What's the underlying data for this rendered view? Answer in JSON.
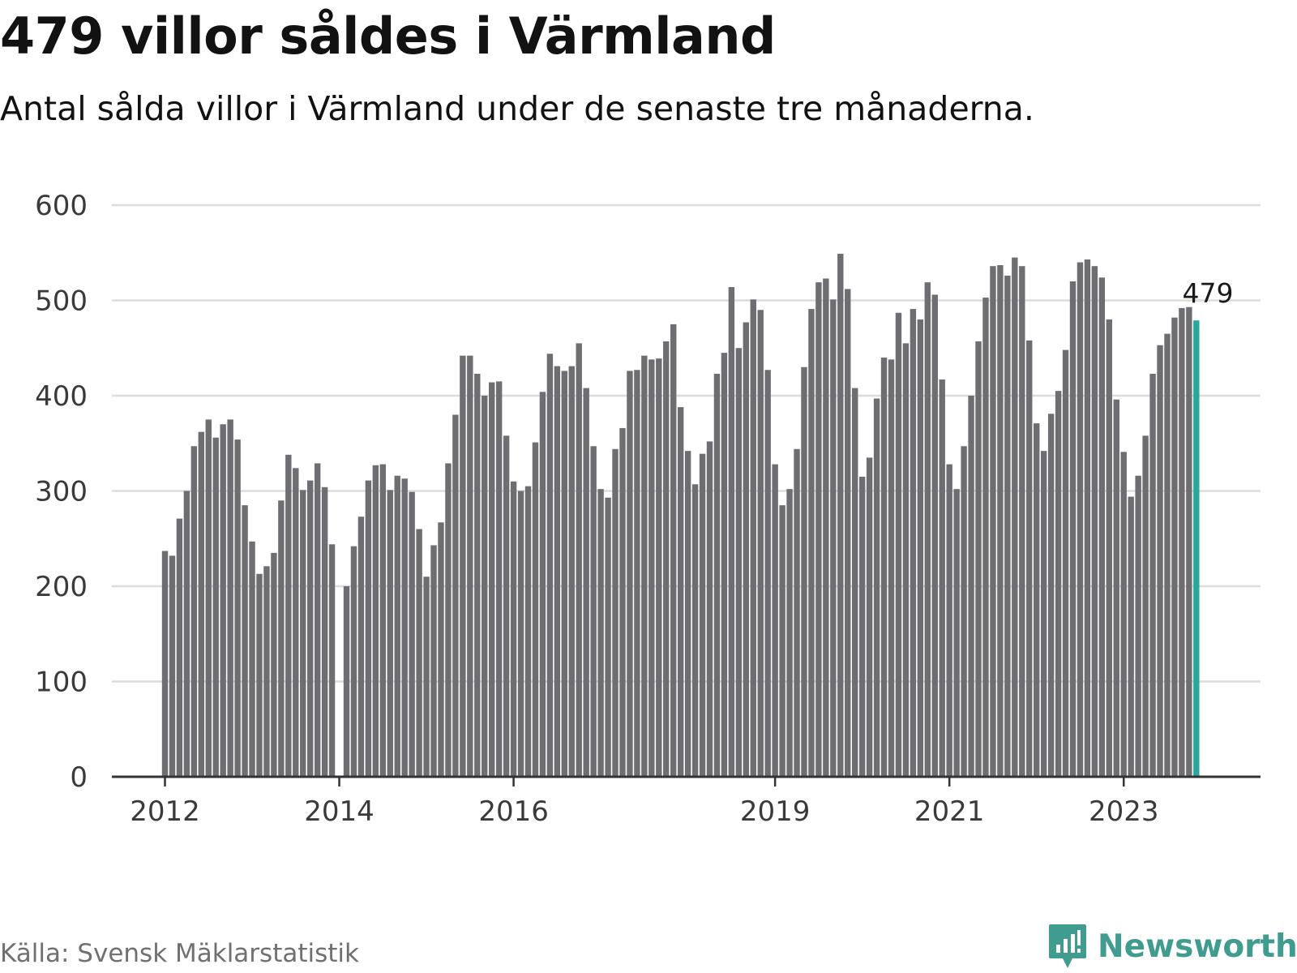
{
  "header": {
    "title": "479 villor såldes i Värmland",
    "subtitle": "Antal sålda villor i Värmland under de senaste tre månaderna."
  },
  "footer": {
    "source": "Källa: Svensk Mäklarstatistik",
    "brand": "Newsworthy",
    "brand_icon": "newsworthy-logo-icon"
  },
  "colors": {
    "bar": "#6e6d72",
    "highlight": "#2aa69a",
    "grid": "#dcdcdc",
    "axis": "#333333",
    "brand": "#3f9c8e"
  },
  "chart_data": {
    "type": "bar",
    "title": "479 villor såldes i Värmland",
    "subtitle": "Antal sålda villor i Värmland under de senaste tre månaderna.",
    "xlabel": "",
    "ylabel": "",
    "ylim": [
      0,
      600
    ],
    "yticks": [
      "0",
      "100",
      "200",
      "300",
      "400",
      "500",
      "600"
    ],
    "grid": true,
    "start_month": "2012-01",
    "xtick_labels": [
      {
        "label": "2012",
        "month": "2012-01"
      },
      {
        "label": "2014",
        "month": "2014-01"
      },
      {
        "label": "2016",
        "month": "2016-01"
      },
      {
        "label": "2019",
        "month": "2019-01"
      },
      {
        "label": "2021",
        "month": "2021-01"
      },
      {
        "label": "2023",
        "month": "2023-01"
      }
    ],
    "values": [
      237,
      232,
      271,
      300,
      347,
      362,
      375,
      356,
      370,
      375,
      354,
      285,
      247,
      213,
      221,
      235,
      290,
      338,
      324,
      301,
      311,
      329,
      304,
      244,
      null,
      200,
      242,
      273,
      311,
      327,
      328,
      301,
      316,
      313,
      299,
      260,
      210,
      243,
      267,
      329,
      380,
      442,
      442,
      423,
      400,
      414,
      415,
      358,
      310,
      300,
      305,
      351,
      404,
      444,
      431,
      426,
      431,
      455,
      408,
      347,
      302,
      293,
      344,
      366,
      426,
      427,
      442,
      438,
      439,
      457,
      475,
      388,
      342,
      307,
      339,
      352,
      423,
      445,
      514,
      450,
      477,
      501,
      490,
      427,
      328,
      285,
      302,
      344,
      430,
      491,
      519,
      523,
      501,
      549,
      512,
      408,
      315,
      335,
      397,
      440,
      438,
      487,
      455,
      491,
      480,
      519,
      506,
      417,
      328,
      302,
      347,
      400,
      457,
      503,
      536,
      537,
      526,
      545,
      536,
      458,
      371,
      342,
      381,
      405,
      448,
      520,
      540,
      543,
      536,
      524,
      480,
      396,
      341,
      294,
      316,
      358,
      423,
      453,
      465,
      482,
      492,
      493,
      479
    ],
    "highlight": {
      "index": 142,
      "value": 479,
      "label": "479"
    }
  }
}
